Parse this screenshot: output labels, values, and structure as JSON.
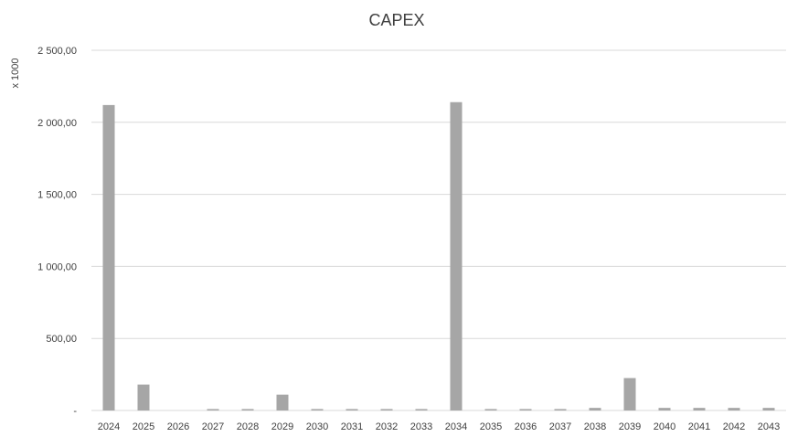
{
  "chart_data": {
    "type": "bar",
    "title": "CAPEX",
    "xlabel": "",
    "ylabel": "x 1000",
    "ylim": [
      0,
      2500
    ],
    "yticks": [
      0,
      500,
      1000,
      1500,
      2000,
      2500
    ],
    "ytick_labels": [
      "-",
      "500,00",
      "1 000,00",
      "1 500,00",
      "2 000,00",
      "2 500,00"
    ],
    "grid": true,
    "legend": "none",
    "bar_color": "#a6a6a6",
    "categories": [
      "2024",
      "2025",
      "2026",
      "2027",
      "2028",
      "2029",
      "2030",
      "2031",
      "2032",
      "2033",
      "2034",
      "2035",
      "2036",
      "2037",
      "2038",
      "2039",
      "2040",
      "2041",
      "2042",
      "2043"
    ],
    "values": [
      2120,
      180,
      0,
      10,
      10,
      110,
      10,
      10,
      10,
      10,
      2140,
      10,
      10,
      10,
      18,
      225,
      18,
      18,
      18,
      18
    ]
  }
}
